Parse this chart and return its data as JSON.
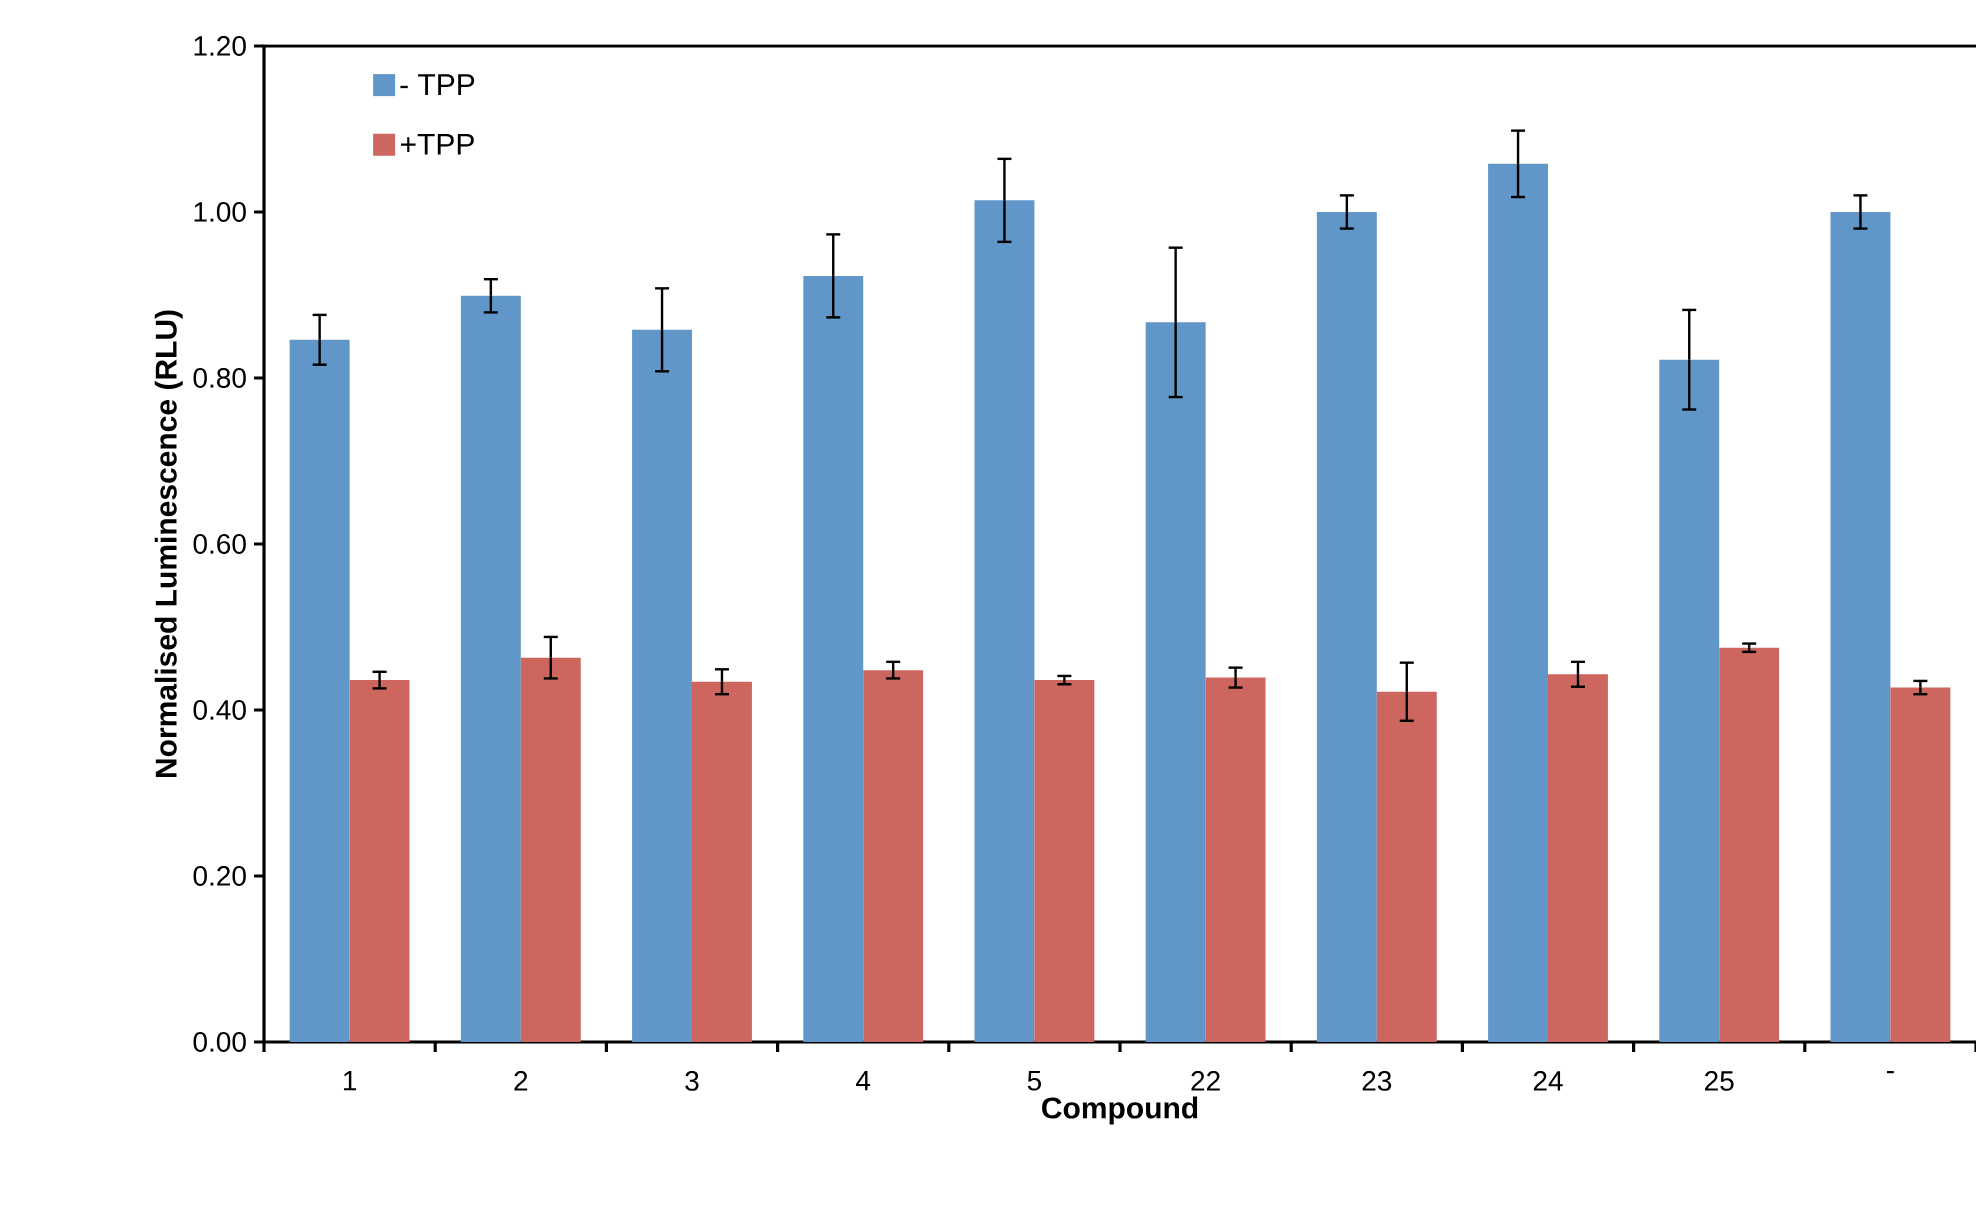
{
  "chart_data": {
    "type": "bar",
    "xlabel": "Compound",
    "ylabel": "Normalised Luminescence  (RLU)",
    "categories": [
      "1",
      "2",
      "3",
      "4",
      "5",
      "22",
      "23",
      "24",
      "25",
      "-"
    ],
    "series": [
      {
        "name": "- TPP",
        "color": "#6096c8",
        "values": [
          0.846,
          0.899,
          0.858,
          0.923,
          1.014,
          0.867,
          1.0,
          1.058,
          0.822,
          1.0
        ],
        "errors": [
          0.03,
          0.02,
          0.05,
          0.05,
          0.05,
          0.09,
          0.02,
          0.04,
          0.06,
          0.02
        ]
      },
      {
        "name": "+TPP",
        "color": "#cc665e",
        "values": [
          0.436,
          0.463,
          0.434,
          0.448,
          0.436,
          0.439,
          0.422,
          0.443,
          0.475,
          0.427
        ],
        "errors": [
          0.01,
          0.025,
          0.015,
          0.01,
          0.005,
          0.012,
          0.035,
          0.015,
          0.005,
          0.008
        ]
      }
    ],
    "ylim": [
      0,
      1.2
    ],
    "yticks": [
      {
        "value": 0,
        "label": "0.00"
      },
      {
        "value": 0.2,
        "label": "0.20"
      },
      {
        "value": 0.4,
        "label": "0.40"
      },
      {
        "value": 0.6,
        "label": "0.60"
      },
      {
        "value": 0.8,
        "label": "0.80"
      },
      {
        "value": 1.0,
        "label": "1.00"
      },
      {
        "value": 1.2,
        "label": "1.20"
      }
    ],
    "grid": false,
    "legend": "top left"
  }
}
